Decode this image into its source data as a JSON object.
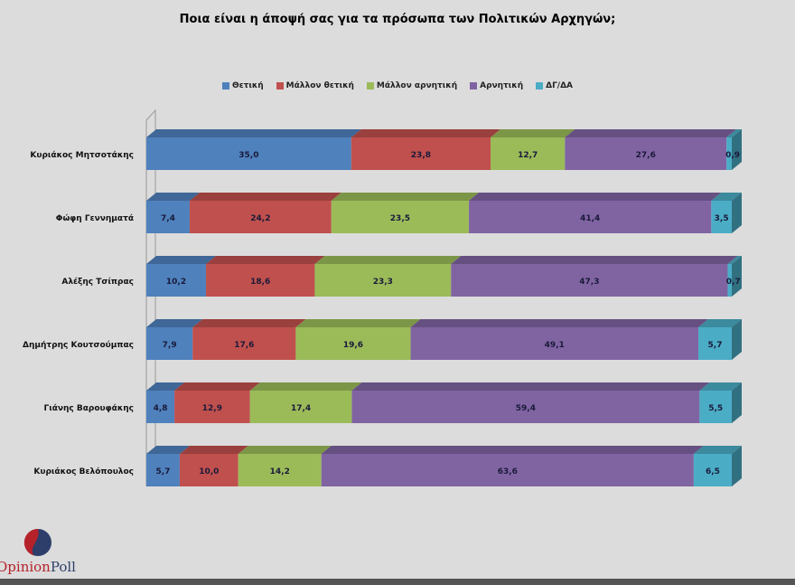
{
  "chart_data": {
    "type": "bar",
    "orientation": "horizontal-stacked-3d",
    "title": "Ποια είναι η άποψή σας για τα πρόσωπα των Πολιτικών Αρχηγών;",
    "legend_placement": "top",
    "grid": false,
    "xlim": [
      0,
      100
    ],
    "categories": [
      "Κυριάκος Μητσοτάκης",
      "Φώφη Γεννηματά",
      "Αλέξης Τσίπρας",
      "Δημήτρης Κουτσούμπας",
      "Γιάνης Βαρουφάκης",
      "Κυριάκος Βελόπουλος"
    ],
    "series": [
      {
        "name": "Θετική",
        "color": "#4f81bd",
        "values": [
          35.0,
          7.4,
          10.2,
          7.9,
          4.8,
          5.7
        ]
      },
      {
        "name": "Μάλλον θετική",
        "color": "#c0504d",
        "values": [
          23.8,
          24.2,
          18.6,
          17.6,
          12.9,
          10.0
        ]
      },
      {
        "name": "Μάλλον αρνητική",
        "color": "#9bbb59",
        "values": [
          12.7,
          23.5,
          23.3,
          19.6,
          17.4,
          14.2
        ]
      },
      {
        "name": "Αρνητική",
        "color": "#8064a2",
        "values": [
          27.6,
          41.4,
          47.3,
          49.1,
          59.4,
          63.6
        ]
      },
      {
        "name": "ΔΓ/ΔΑ",
        "color": "#4bacc6",
        "values": [
          0.9,
          3.5,
          0.7,
          5.7,
          5.5,
          6.5
        ]
      }
    ]
  },
  "logo": {
    "part1": "Opinion",
    "part2": "Poll"
  }
}
